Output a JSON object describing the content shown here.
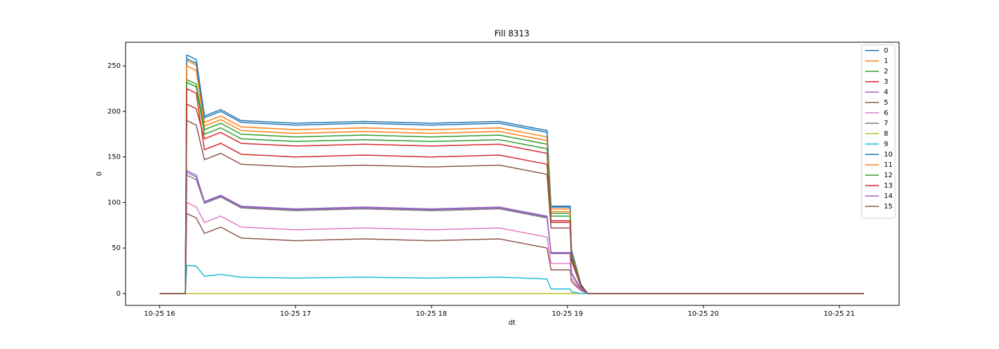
{
  "chart_data": {
    "type": "line",
    "title": "Fill 8313",
    "xlabel": "dt",
    "ylabel": "0",
    "x": [
      16.0,
      16.19,
      16.2,
      16.27,
      16.33,
      16.45,
      16.6,
      17.0,
      17.5,
      18.0,
      18.5,
      18.85,
      18.88,
      19.02,
      19.03,
      19.1,
      19.15,
      21.18
    ],
    "xlim": [
      15.75,
      21.44
    ],
    "xticks": [
      {
        "value": 16,
        "label": "10-25 16"
      },
      {
        "value": 17,
        "label": "10-25 17"
      },
      {
        "value": 18,
        "label": "10-25 18"
      },
      {
        "value": 19,
        "label": "10-25 19"
      },
      {
        "value": 20,
        "label": "10-25 20"
      },
      {
        "value": 21,
        "label": "10-25 21"
      }
    ],
    "ylim": [
      -13,
      276
    ],
    "yticks": [
      0,
      50,
      100,
      150,
      200,
      250
    ],
    "legend": "upper right",
    "series": [
      {
        "name": "0",
        "color": "#1f77b4",
        "values": [
          0,
          0,
          262,
          257,
          195,
          202,
          190,
          187,
          189,
          187,
          189,
          179,
          96,
          96,
          48,
          10,
          0,
          0
        ]
      },
      {
        "name": "1",
        "color": "#ff7f0e",
        "values": [
          0,
          0,
          256,
          251,
          188,
          195,
          183,
          180,
          182,
          180,
          182,
          172,
          93,
          93,
          47,
          9,
          0,
          0
        ]
      },
      {
        "name": "2",
        "color": "#2ca02c",
        "values": [
          0,
          0,
          235,
          230,
          180,
          187,
          175,
          172,
          174,
          172,
          174,
          164,
          88,
          88,
          44,
          9,
          0,
          0
        ]
      },
      {
        "name": "3",
        "color": "#d62728",
        "values": [
          0,
          0,
          208,
          203,
          170,
          177,
          165,
          162,
          164,
          162,
          164,
          154,
          80,
          80,
          40,
          8,
          0,
          0
        ]
      },
      {
        "name": "4",
        "color": "#9467bd",
        "values": [
          0,
          0,
          135,
          130,
          101,
          108,
          96,
          93,
          95,
          93,
          95,
          85,
          45,
          45,
          23,
          5,
          0,
          0
        ]
      },
      {
        "name": "5",
        "color": "#8c564b",
        "values": [
          0,
          0,
          88,
          83,
          66,
          73,
          61,
          58,
          60,
          58,
          60,
          50,
          26,
          26,
          13,
          3,
          0,
          0
        ]
      },
      {
        "name": "6",
        "color": "#e377c2",
        "values": [
          0,
          0,
          100,
          95,
          78,
          85,
          73,
          70,
          72,
          70,
          72,
          62,
          33,
          33,
          17,
          3,
          0,
          0
        ]
      },
      {
        "name": "7",
        "color": "#7f7f7f",
        "values": [
          0,
          0,
          130,
          125,
          99,
          106,
          94,
          91,
          93,
          91,
          93,
          83,
          44,
          44,
          22,
          4,
          0,
          0
        ]
      },
      {
        "name": "8",
        "color": "#bcbd22",
        "values": [
          0,
          0,
          0,
          0,
          0,
          0,
          0,
          0,
          0,
          0,
          0,
          0,
          0,
          0,
          0,
          0,
          0,
          0
        ]
      },
      {
        "name": "9",
        "color": "#17becf",
        "values": [
          0,
          0,
          31,
          30,
          19,
          21,
          18,
          17,
          18,
          17,
          18,
          16,
          5,
          5,
          2,
          0,
          0,
          0
        ]
      },
      {
        "name": "10",
        "color": "#1f77b4",
        "values": [
          0,
          0,
          258,
          253,
          193,
          200,
          188,
          185,
          187,
          185,
          187,
          177,
          95,
          95,
          48,
          10,
          0,
          0
        ]
      },
      {
        "name": "11",
        "color": "#ff7f0e",
        "values": [
          0,
          0,
          250,
          245,
          184,
          191,
          179,
          176,
          178,
          176,
          178,
          168,
          90,
          90,
          45,
          9,
          0,
          0
        ]
      },
      {
        "name": "12",
        "color": "#2ca02c",
        "values": [
          0,
          0,
          232,
          227,
          175,
          182,
          170,
          167,
          169,
          167,
          169,
          159,
          85,
          85,
          43,
          9,
          0,
          0
        ]
      },
      {
        "name": "13",
        "color": "#d62728",
        "values": [
          0,
          0,
          225,
          220,
          158,
          165,
          153,
          150,
          152,
          150,
          152,
          142,
          78,
          78,
          39,
          8,
          0,
          0
        ]
      },
      {
        "name": "14",
        "color": "#9467bd",
        "values": [
          0,
          0,
          133,
          128,
          100,
          107,
          95,
          92,
          94,
          92,
          94,
          84,
          44,
          44,
          22,
          4,
          0,
          0
        ]
      },
      {
        "name": "15",
        "color": "#8c564b",
        "values": [
          0,
          0,
          190,
          185,
          147,
          154,
          142,
          139,
          141,
          139,
          141,
          131,
          72,
          72,
          36,
          7,
          0,
          0
        ]
      }
    ]
  }
}
